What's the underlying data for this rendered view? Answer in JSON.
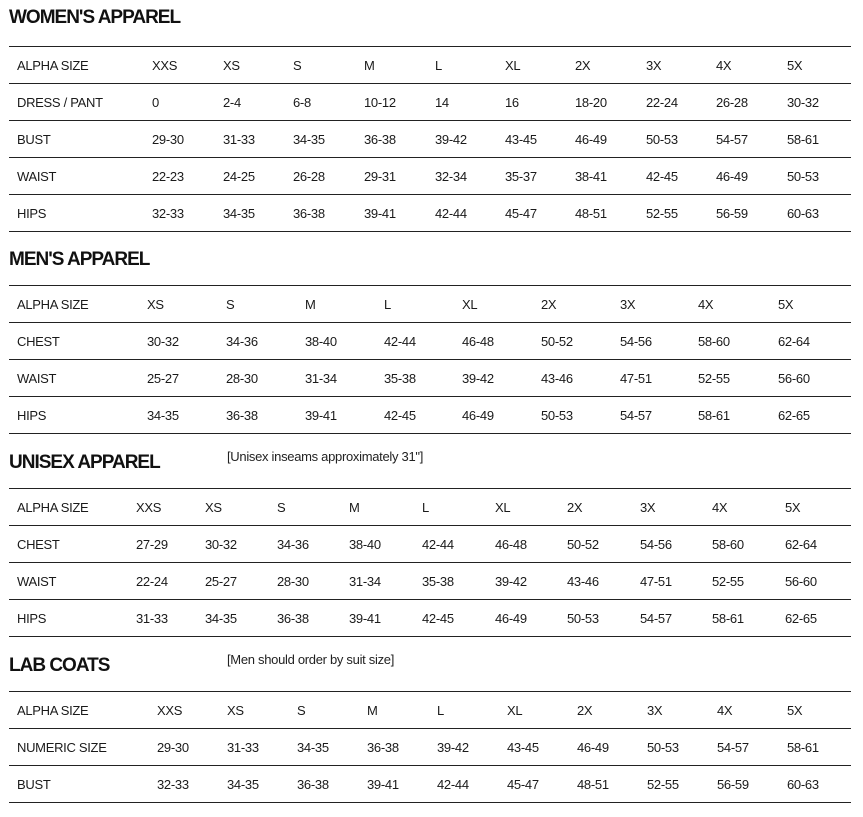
{
  "sections": [
    {
      "title": "WOMEN'S APPAREL",
      "note": "",
      "rows": [
        [
          "ALPHA SIZE",
          "XXS",
          "XS",
          "S",
          "M",
          "L",
          "XL",
          "2X",
          "3X",
          "4X",
          "5X"
        ],
        [
          "DRESS / PANT",
          "0",
          "2-4",
          "6-8",
          "10-12",
          "14",
          "16",
          "18-20",
          "22-24",
          "26-28",
          "30-32"
        ],
        [
          "BUST",
          "29-30",
          "31-33",
          "34-35",
          "36-38",
          "39-42",
          "43-45",
          "46-49",
          "50-53",
          "54-57",
          "58-61"
        ],
        [
          "WAIST",
          "22-23",
          "24-25",
          "26-28",
          "29-31",
          "32-34",
          "35-37",
          "38-41",
          "42-45",
          "46-49",
          "50-53"
        ],
        [
          "HIPS",
          "32-33",
          "34-35",
          "36-38",
          "39-41",
          "42-44",
          "45-47",
          "48-51",
          "52-55",
          "56-59",
          "60-63"
        ]
      ]
    },
    {
      "title": "MEN'S APPAREL",
      "note": "",
      "rows": [
        [
          "ALPHA SIZE",
          "XS",
          "S",
          "M",
          "L",
          "XL",
          "2X",
          "3X",
          "4X",
          "5X"
        ],
        [
          "CHEST",
          "30-32",
          "34-36",
          "38-40",
          "42-44",
          "46-48",
          "50-52",
          "54-56",
          "58-60",
          "62-64"
        ],
        [
          "WAIST",
          "25-27",
          "28-30",
          "31-34",
          "35-38",
          "39-42",
          "43-46",
          "47-51",
          "52-55",
          "56-60"
        ],
        [
          "HIPS",
          "34-35",
          "36-38",
          "39-41",
          "42-45",
          "46-49",
          "50-53",
          "54-57",
          "58-61",
          "62-65"
        ]
      ]
    },
    {
      "title": "UNISEX APPAREL",
      "note": "[Unisex inseams approximately 31\"]",
      "rows": [
        [
          "ALPHA SIZE",
          "XXS",
          "XS",
          "S",
          "M",
          "L",
          "XL",
          "2X",
          "3X",
          "4X",
          "5X"
        ],
        [
          "CHEST",
          "27-29",
          "30-32",
          "34-36",
          "38-40",
          "42-44",
          "46-48",
          "50-52",
          "54-56",
          "58-60",
          "62-64"
        ],
        [
          "WAIST",
          "22-24",
          "25-27",
          "28-30",
          "31-34",
          "35-38",
          "39-42",
          "43-46",
          "47-51",
          "52-55",
          "56-60"
        ],
        [
          "HIPS",
          "31-33",
          "34-35",
          "36-38",
          "39-41",
          "42-45",
          "46-49",
          "50-53",
          "54-57",
          "58-61",
          "62-65"
        ]
      ]
    },
    {
      "title": "LAB COATS",
      "note": "[Men should order by suit size]",
      "rows": [
        [
          "ALPHA SIZE",
          "XXS",
          "XS",
          "S",
          "M",
          "L",
          "XL",
          "2X",
          "3X",
          "4X",
          "5X"
        ],
        [
          "NUMERIC SIZE",
          "29-30",
          "31-33",
          "34-35",
          "36-38",
          "39-42",
          "43-45",
          "46-49",
          "50-53",
          "54-57",
          "58-61"
        ],
        [
          "BUST",
          "32-33",
          "34-35",
          "36-38",
          "39-41",
          "42-44",
          "45-47",
          "48-51",
          "52-55",
          "56-59",
          "60-63"
        ]
      ]
    }
  ]
}
